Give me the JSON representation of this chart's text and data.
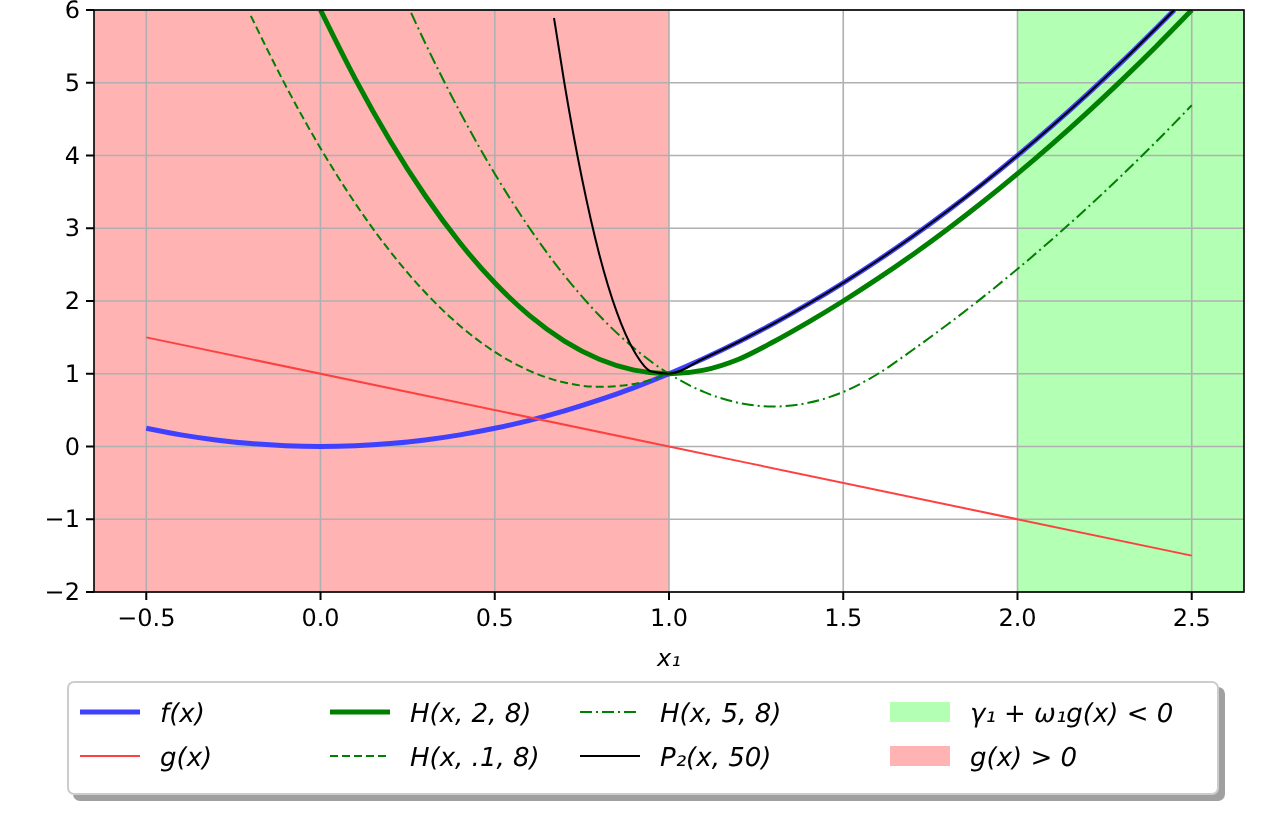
{
  "chart_data": {
    "type": "line",
    "xlabel": "x₁",
    "xlim": [
      -0.65,
      2.65
    ],
    "ylim": [
      -2,
      6
    ],
    "xticks": [
      {
        "value": -0.5,
        "label": "−0.5"
      },
      {
        "value": 0,
        "label": "0.0"
      },
      0.5,
      {
        "value": 1,
        "label": "1.0"
      },
      1.5,
      {
        "value": 2,
        "label": "2.0"
      },
      2.5
    ],
    "yticks": [
      {
        "value": -2,
        "label": "−2"
      },
      {
        "value": -1,
        "label": "−1"
      },
      0,
      1,
      2,
      3,
      4,
      5,
      6
    ],
    "grid": true,
    "legend": "bottom",
    "series": [
      {
        "name": "f(x)",
        "color": "#4040ff",
        "x": [
          -0.5,
          -0.4,
          -0.3,
          -0.2,
          -0.1,
          0,
          0.1,
          0.2,
          0.3,
          0.4,
          0.5,
          0.6,
          0.7,
          0.8,
          0.9,
          1.0,
          1.1,
          1.2,
          1.3,
          1.4,
          1.5,
          1.6,
          1.7,
          1.8,
          1.9,
          2.0,
          2.1,
          2.2,
          2.3,
          2.4,
          2.45
        ],
        "values": [
          0.25,
          0.16,
          0.09,
          0.04,
          0.01,
          0,
          0.01,
          0.04,
          0.09,
          0.16,
          0.25,
          0.36,
          0.49,
          0.64,
          0.81,
          1.0,
          1.21,
          1.44,
          1.69,
          1.96,
          2.25,
          2.56,
          2.89,
          3.24,
          3.61,
          4.0,
          4.41,
          4.84,
          5.29,
          5.76,
          6.0
        ]
      },
      {
        "name": "g(x)",
        "color": "#ff4040",
        "x": [
          -0.5,
          1.0,
          2.5
        ],
        "values": [
          1.5,
          0,
          -1.5
        ]
      },
      {
        "name": "H(x, 2, 8)",
        "color": "#008000",
        "x": [
          0,
          0.1,
          0.2,
          0.3,
          0.4,
          0.5,
          0.6,
          0.7,
          0.8,
          0.9,
          1.0,
          1.1,
          1.2,
          1.3,
          1.4,
          1.5,
          1.6,
          1.7,
          1.8,
          1.9,
          2.0,
          2.1,
          2.2,
          2.3,
          2.4,
          2.5
        ],
        "values": [
          6.0,
          5.05,
          4.2,
          3.45,
          2.8,
          2.25,
          1.8,
          1.45,
          1.2,
          1.05,
          1.0,
          1.05,
          1.2,
          1.44,
          1.71,
          2.0,
          2.31,
          2.64,
          2.99,
          3.36,
          3.75,
          4.16,
          4.59,
          5.04,
          5.51,
          6.0
        ]
      },
      {
        "name": "H(x, .1, 8)",
        "color": "#008000",
        "line_style": "dashed",
        "x": [
          -0.2,
          -0.1,
          0,
          0.1,
          0.2,
          0.3,
          0.4,
          0.5,
          0.6,
          0.7,
          0.8,
          0.9,
          1.0
        ],
        "values": [
          5.92,
          4.96,
          4.1,
          3.34,
          2.68,
          2.12,
          1.66,
          1.3,
          1.04,
          0.88,
          0.82,
          0.86,
          1.0
        ]
      },
      {
        "name": "H(x, 5, 8)",
        "color": "#008000",
        "line_style": "dashdot",
        "x": [
          0.26,
          0.3,
          0.4,
          0.5,
          0.6,
          0.7,
          0.8,
          0.9,
          1.0,
          1.1,
          1.2,
          1.3,
          1.4,
          1.5,
          1.6,
          1.7,
          1.8,
          1.9,
          2.0,
          2.1,
          2.2,
          2.3,
          2.4,
          2.5
        ],
        "values": [
          5.96,
          5.55,
          4.6,
          3.75,
          3.0,
          2.35,
          1.8,
          1.35,
          1.0,
          0.75,
          0.6,
          0.55,
          0.6,
          0.75,
          1.0,
          1.33,
          1.68,
          2.05,
          2.44,
          2.85,
          3.28,
          3.73,
          4.2,
          4.69
        ]
      },
      {
        "name": "P₂(x, 50)",
        "color": "#000000",
        "x": [
          0.67,
          0.7,
          0.75,
          0.8,
          0.85,
          0.9,
          0.95,
          1.0,
          1.1,
          1.2,
          1.3,
          1.4,
          1.5,
          1.6,
          1.7,
          1.8,
          1.9,
          2.0,
          2.1,
          2.2,
          2.3,
          2.4,
          2.45
        ],
        "values": [
          5.89,
          4.99,
          3.69,
          2.64,
          1.85,
          1.31,
          1.03,
          1.0,
          1.21,
          1.44,
          1.69,
          1.96,
          2.25,
          2.56,
          2.89,
          3.24,
          3.61,
          4.0,
          4.41,
          4.84,
          5.29,
          5.76,
          6.0
        ]
      }
    ],
    "bands": [
      {
        "axis": "x",
        "from": 2.0,
        "to": 2.65,
        "label": "γ₁ + ω₁g(x) < 0",
        "color": "#b3ffb3"
      },
      {
        "axis": "x",
        "from": -0.65,
        "to": 1.0,
        "label": "g(x) > 0",
        "color": "#ffb3b3"
      }
    ]
  }
}
